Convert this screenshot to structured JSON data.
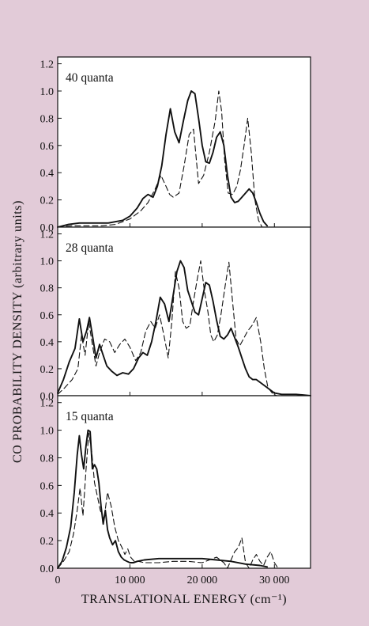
{
  "figure": {
    "ylabel": "CO PROBABILITY DENSITY  (arbitrary units)",
    "xlabel": "TRANSLATIONAL ENERGY (cm⁻¹)",
    "background": "#e2cbd8",
    "plot_background": "#ffffff",
    "line_color": "#111111"
  },
  "chart_data": [
    {
      "type": "line",
      "title": "40 quanta",
      "xlim": [
        0,
        35000
      ],
      "ylim": [
        0,
        1.25
      ],
      "yticks": [
        0.0,
        0.2,
        0.4,
        0.6,
        0.8,
        1.0,
        1.2
      ],
      "ytick_labels": [
        "0.0",
        "0.2",
        "0.4",
        "0.6",
        "0.8",
        "1.0",
        "1.2"
      ],
      "series": [
        {
          "style": "solid",
          "x": [
            0,
            1500,
            3000,
            5000,
            7000,
            9000,
            10000,
            11000,
            11800,
            12500,
            13200,
            13800,
            14400,
            15000,
            15600,
            16200,
            16800,
            17400,
            18000,
            18500,
            19000,
            19500,
            20000,
            20500,
            21000,
            21500,
            22000,
            22500,
            23000,
            23500,
            24000,
            24500,
            25000,
            25500,
            26000,
            26500,
            27000,
            27500,
            28000,
            28500,
            29000
          ],
          "y": [
            0.0,
            0.02,
            0.03,
            0.03,
            0.03,
            0.05,
            0.08,
            0.14,
            0.21,
            0.24,
            0.22,
            0.3,
            0.45,
            0.68,
            0.87,
            0.7,
            0.62,
            0.78,
            0.93,
            1.0,
            0.98,
            0.8,
            0.6,
            0.48,
            0.47,
            0.55,
            0.66,
            0.7,
            0.6,
            0.38,
            0.22,
            0.18,
            0.19,
            0.22,
            0.25,
            0.28,
            0.25,
            0.18,
            0.1,
            0.04,
            0.01
          ]
        },
        {
          "style": "dashed",
          "x": [
            0,
            2000,
            4000,
            6000,
            8000,
            10000,
            11500,
            12500,
            13500,
            14300,
            15000,
            15500,
            16000,
            16800,
            17500,
            18200,
            18800,
            19500,
            20200,
            21000,
            21800,
            22300,
            22700,
            23100,
            23600,
            24200,
            24800,
            25300,
            25800,
            26300,
            26800,
            27300,
            27800,
            28300
          ],
          "y": [
            0.0,
            0.01,
            0.01,
            0.01,
            0.02,
            0.06,
            0.12,
            0.18,
            0.28,
            0.38,
            0.3,
            0.24,
            0.22,
            0.25,
            0.45,
            0.68,
            0.72,
            0.32,
            0.38,
            0.55,
            0.78,
            1.0,
            0.85,
            0.5,
            0.25,
            0.24,
            0.3,
            0.42,
            0.6,
            0.8,
            0.55,
            0.2,
            0.05,
            0.0
          ]
        }
      ]
    },
    {
      "type": "line",
      "title": "28 quanta",
      "xlim": [
        0,
        35000
      ],
      "ylim": [
        0,
        1.25
      ],
      "yticks": [
        0.0,
        0.2,
        0.4,
        0.6,
        0.8,
        1.0,
        1.2
      ],
      "ytick_labels": [
        "0.0",
        "0.2",
        "0.4",
        "0.6",
        "0.8",
        "1.0",
        "1.2"
      ],
      "series": [
        {
          "style": "solid",
          "x": [
            0,
            800,
            1600,
            2400,
            3000,
            3500,
            4000,
            4400,
            4800,
            5300,
            5800,
            6300,
            6800,
            7500,
            8200,
            9000,
            9800,
            10500,
            11200,
            11800,
            12400,
            13000,
            13600,
            14200,
            14800,
            15400,
            16000,
            16500,
            17000,
            17500,
            18000,
            18500,
            19000,
            19500,
            20000,
            20500,
            21000,
            21500,
            22000,
            22500,
            23000,
            23500,
            24000,
            24500,
            25000,
            25500,
            26000,
            26500,
            27000,
            27500,
            28000,
            29000,
            30000,
            31000,
            33000,
            35000
          ],
          "y": [
            0.02,
            0.12,
            0.25,
            0.35,
            0.57,
            0.4,
            0.48,
            0.58,
            0.45,
            0.28,
            0.38,
            0.3,
            0.22,
            0.18,
            0.15,
            0.17,
            0.16,
            0.2,
            0.28,
            0.32,
            0.3,
            0.4,
            0.55,
            0.73,
            0.68,
            0.55,
            0.75,
            0.92,
            1.0,
            0.95,
            0.78,
            0.7,
            0.62,
            0.6,
            0.72,
            0.84,
            0.82,
            0.7,
            0.56,
            0.44,
            0.42,
            0.45,
            0.5,
            0.43,
            0.36,
            0.28,
            0.2,
            0.14,
            0.12,
            0.12,
            0.1,
            0.06,
            0.02,
            0.01,
            0.01,
            0.0
          ]
        },
        {
          "style": "dashed",
          "x": [
            0,
            1000,
            2000,
            2800,
            3300,
            3800,
            4300,
            4800,
            5300,
            5800,
            6500,
            7200,
            7900,
            8600,
            9300,
            10000,
            10800,
            11500,
            12200,
            12900,
            13500,
            14100,
            14700,
            15300,
            15800,
            16300,
            16800,
            17300,
            17800,
            18300,
            18800,
            19300,
            19800,
            20300,
            20800,
            21200,
            21600,
            22100,
            22600,
            23200,
            23700,
            24200,
            24700,
            25200,
            25700,
            26300,
            26900,
            27500,
            28100,
            28600,
            29100,
            29700,
            30300
          ],
          "y": [
            0.01,
            0.06,
            0.12,
            0.2,
            0.45,
            0.3,
            0.55,
            0.38,
            0.22,
            0.32,
            0.42,
            0.4,
            0.32,
            0.38,
            0.42,
            0.36,
            0.26,
            0.32,
            0.48,
            0.55,
            0.5,
            0.6,
            0.45,
            0.28,
            0.55,
            0.92,
            0.8,
            0.55,
            0.5,
            0.52,
            0.7,
            0.86,
            1.0,
            0.78,
            0.62,
            0.45,
            0.4,
            0.45,
            0.6,
            0.82,
            0.99,
            0.7,
            0.42,
            0.37,
            0.42,
            0.48,
            0.52,
            0.58,
            0.4,
            0.2,
            0.06,
            0.02,
            0.0
          ]
        }
      ]
    },
    {
      "type": "line",
      "title": "15 quanta",
      "xlim": [
        0,
        35000
      ],
      "ylim": [
        0,
        1.25
      ],
      "yticks": [
        0.0,
        0.2,
        0.4,
        0.6,
        0.8,
        1.0,
        1.2
      ],
      "ytick_labels": [
        "0.0",
        "0.2",
        "0.4",
        "0.6",
        "0.8",
        "1.0",
        "1.2"
      ],
      "xticks": [
        0,
        10000,
        20000,
        30000
      ],
      "xtick_labels": [
        "0",
        "10 000",
        "20 000",
        "30 000"
      ],
      "series": [
        {
          "style": "solid",
          "x": [
            0,
            600,
            1200,
            1800,
            2300,
            2700,
            3000,
            3300,
            3600,
            3900,
            4200,
            4500,
            4800,
            5100,
            5400,
            5700,
            6000,
            6300,
            6600,
            6900,
            7200,
            7600,
            8000,
            8400,
            8800,
            9200,
            9600,
            10000,
            10500,
            11000,
            12000,
            14000,
            16000,
            18000,
            20000,
            22000,
            24000,
            26000,
            28000,
            29000
          ],
          "y": [
            0.0,
            0.05,
            0.15,
            0.3,
            0.55,
            0.82,
            0.96,
            0.82,
            0.72,
            0.88,
            1.0,
            0.99,
            0.72,
            0.75,
            0.72,
            0.62,
            0.45,
            0.32,
            0.42,
            0.28,
            0.22,
            0.17,
            0.2,
            0.12,
            0.08,
            0.06,
            0.05,
            0.04,
            0.04,
            0.05,
            0.06,
            0.07,
            0.07,
            0.07,
            0.07,
            0.06,
            0.05,
            0.03,
            0.02,
            0.01
          ]
        },
        {
          "style": "dashed",
          "x": [
            0,
            800,
            1600,
            2200,
            2700,
            3100,
            3500,
            3900,
            4300,
            4700,
            5100,
            5500,
            5900,
            6400,
            6900,
            7400,
            7900,
            8400,
            8900,
            9300,
            9700,
            10100,
            10600,
            11200,
            12000,
            14000,
            16000,
            18000,
            20000,
            21000,
            22000,
            23000,
            23500,
            24000,
            24500,
            25000,
            25500,
            26000,
            26500,
            27000,
            27500,
            28000,
            28500,
            29000,
            29500,
            30000,
            30500
          ],
          "y": [
            0.0,
            0.05,
            0.12,
            0.25,
            0.42,
            0.58,
            0.38,
            0.7,
            0.98,
            0.85,
            0.62,
            0.52,
            0.42,
            0.35,
            0.55,
            0.45,
            0.3,
            0.2,
            0.15,
            0.1,
            0.14,
            0.08,
            0.05,
            0.05,
            0.04,
            0.04,
            0.05,
            0.05,
            0.04,
            0.06,
            0.08,
            0.04,
            0.0,
            0.06,
            0.12,
            0.15,
            0.22,
            0.04,
            0.0,
            0.06,
            0.1,
            0.05,
            0.02,
            0.08,
            0.12,
            0.04,
            0.0
          ]
        }
      ]
    }
  ]
}
